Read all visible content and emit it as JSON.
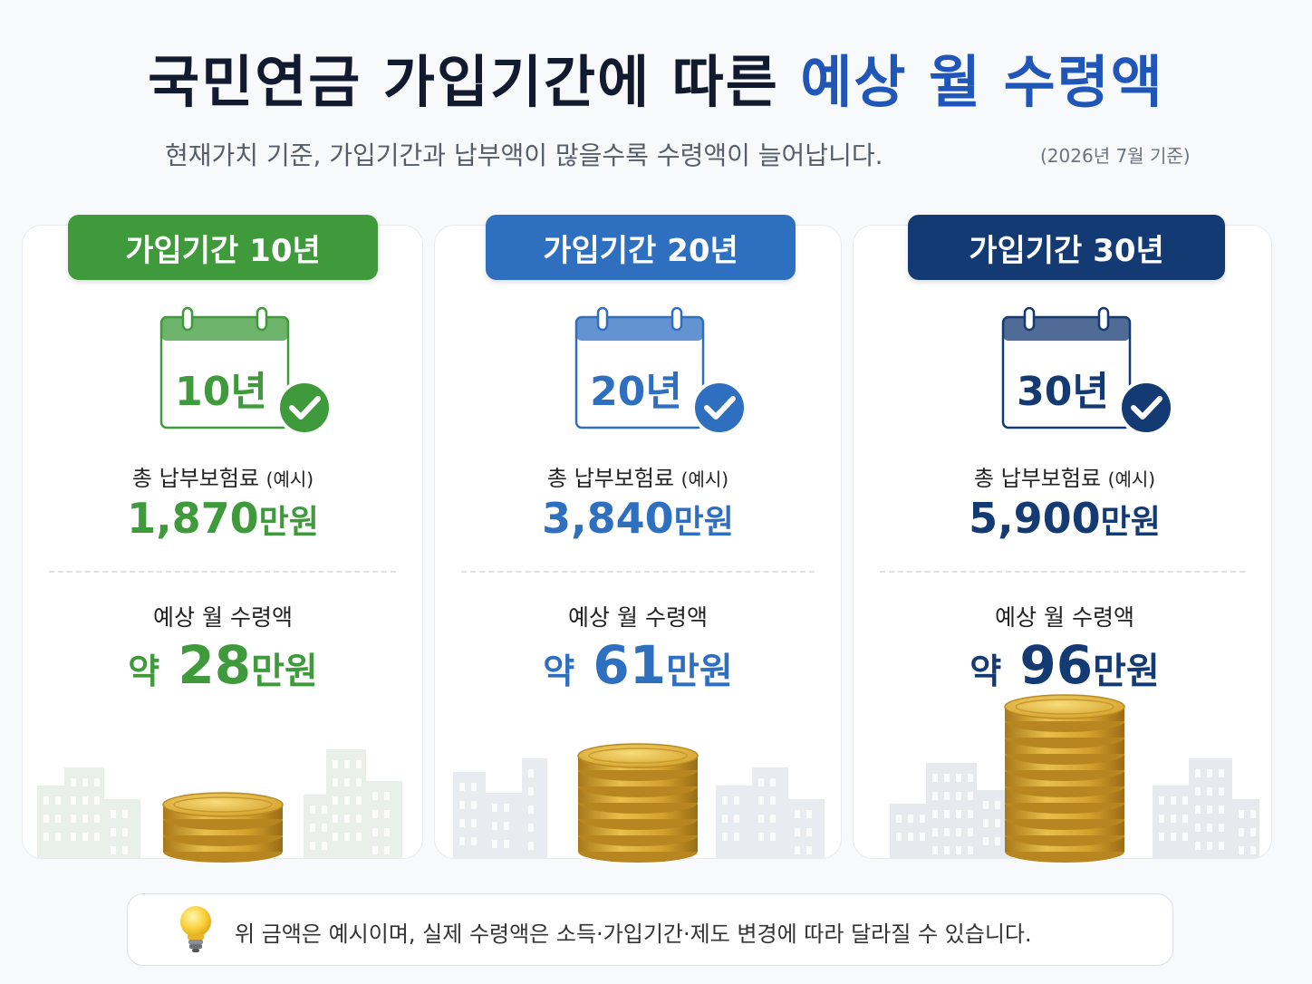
{
  "header": {
    "title_main": "국민연금 가입기간에 따른",
    "title_accent": "예상 월 수령액",
    "subtitle": "현재가치 기준, 가입기간과 납부액이 많을수록 수령액이 늘어납니다.",
    "basis_date": "(2026년 7월 기준)"
  },
  "cards": [
    {
      "period_label": "가입기간 10년",
      "calendar_label": "10년",
      "total_label": "총 납부보험료",
      "total_note": "(예시)",
      "total_amount": "1,870",
      "total_unit": "만원",
      "monthly_label": "예상 월 수령액",
      "monthly_prefix": "약",
      "monthly_amount": "28",
      "monthly_unit": "만원",
      "color": "#3e9a3a",
      "coin_count": 3
    },
    {
      "period_label": "가입기간 20년",
      "calendar_label": "20년",
      "total_label": "총 납부보험료",
      "total_note": "(예시)",
      "total_amount": "3,840",
      "total_unit": "만원",
      "monthly_label": "예상 월 수령액",
      "monthly_prefix": "약",
      "monthly_amount": "61",
      "monthly_unit": "만원",
      "color": "#2f6fc0",
      "coin_count": 6
    },
    {
      "period_label": "가입기간 30년",
      "calendar_label": "30년",
      "total_label": "총 납부보험료",
      "total_note": "(예시)",
      "total_amount": "5,900",
      "total_unit": "만원",
      "monthly_label": "예상 월 수령액",
      "monthly_prefix": "약",
      "monthly_amount": "96",
      "monthly_unit": "만원",
      "color": "#143a73",
      "coin_count": 9
    }
  ],
  "note": {
    "icon": "lightbulb-icon",
    "text": "위 금액은 예시이며, 실제 수령액은 소득·가입기간·제도 변경에 따라 달라질 수 있습니다."
  },
  "colors": {
    "accent": "#1f56b8",
    "green": "#3e9a3a",
    "blue": "#2f6fc0",
    "navy": "#143a73",
    "coin": "#d4a72c"
  }
}
